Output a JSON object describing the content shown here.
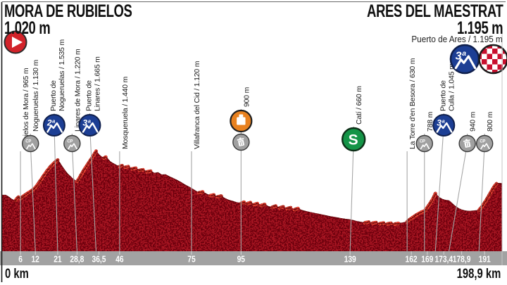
{
  "header": {
    "start": {
      "name": "MORA DE RUBIELOS",
      "altitude": "1.020 m"
    },
    "finish": {
      "name": "ARES DEL MAESTRAT",
      "altitude": "1.195 m",
      "summit": "Puerto de Ares / 1.195 m"
    }
  },
  "axis": {
    "start_label": "0 km",
    "end_label": "198,9 km",
    "ticks": [
      {
        "km": 6,
        "label": "6"
      },
      {
        "km": 12,
        "label": "12"
      },
      {
        "km": 21,
        "label": "21"
      },
      {
        "km": 28.8,
        "label": "28,8"
      },
      {
        "km": 36.5,
        "label": "36,5",
        "dx": 4
      },
      {
        "km": 46,
        "label": "46"
      },
      {
        "km": 75,
        "label": "75"
      },
      {
        "km": 95,
        "label": "95"
      },
      {
        "km": 139,
        "label": "139"
      },
      {
        "km": 162,
        "label": "162",
        "dx": 6
      },
      {
        "km": 169,
        "label": "169",
        "dx": 4
      },
      {
        "km": 173.4,
        "label": "173,4",
        "dx": 12
      },
      {
        "km": 178.9,
        "label": "178,9",
        "dx": 18
      },
      {
        "km": 191,
        "label": "191",
        "dx": 8
      }
    ]
  },
  "icon_labels": {
    "cat2": "2ª",
    "cat3": "3ª",
    "pass": "CP",
    "sprint": "S"
  },
  "colors": {
    "profile_red": "#a81421",
    "highlight_red": "#ee4434",
    "outline_red": "#7a0c15",
    "band_gray": "#a2a2a2",
    "climb_blue": "#1c3e94",
    "sprint_green": "#149447",
    "feed_orange": "#e8811f",
    "icon_gray": "#a0a0a0",
    "start_red": "#d2232a",
    "checker_red": "#c8102e"
  },
  "chart_data": {
    "type": "area",
    "x_unit": "km",
    "y_unit": "m",
    "x_range": [
      0,
      198.9
    ],
    "start_point": {
      "name": "Mora de Rubielos",
      "elevation_m": 1020
    },
    "finish_point": {
      "name": "Ares del Maestrat",
      "elevation_m": 1195,
      "summit": "Puerto de Ares",
      "category": "3ª"
    },
    "markers": [
      {
        "km": 6,
        "lines": [
          "Rubielos de Mora / 965 m"
        ],
        "icon": "none",
        "elevation_m": 965
      },
      {
        "km": 12,
        "lines": [
          "Nogueruelas / 1.130 m"
        ],
        "icon": "pass",
        "dx": -7,
        "elevation_m": 1130
      },
      {
        "km": 21,
        "lines": [
          "Puerto de",
          "Nogueruelas / 1.535 m"
        ],
        "icon": "cat2",
        "dx": -5,
        "elevation_m": 1535
      },
      {
        "km": 28.8,
        "lines": [
          "Linares de Mora / 1.220 m"
        ],
        "icon": "pass",
        "dx": -7,
        "elevation_m": 1220
      },
      {
        "km": 36.5,
        "lines": [
          "Puerto de",
          "Linares / 1.665 m"
        ],
        "icon": "cat3",
        "dx": -9,
        "elevation_m": 1665
      },
      {
        "km": 46,
        "lines": [
          "Mosqueruela / 1.440 m"
        ],
        "icon": "none",
        "elevation_m": 1440
      },
      {
        "km": 75,
        "lines": [
          "Villafranca del Cid / 1.120 m"
        ],
        "icon": "none",
        "elevation_m": 1120
      },
      {
        "km": 95,
        "lines": [
          "900 m"
        ],
        "icon": "feed_waste",
        "elevation_m": 900
      },
      {
        "km": 139,
        "lines": [
          "Catí / 660 m"
        ],
        "icon": "sprint",
        "dx": 5,
        "elevation_m": 660
      },
      {
        "km": 162,
        "lines": [
          "La Torre d'en Besora / 630 m"
        ],
        "icon": "none",
        "elevation_m": 630
      },
      {
        "km": 169,
        "lines": [
          "788 m"
        ],
        "icon": "pass",
        "elevation_m": 788
      },
      {
        "km": 173.4,
        "lines": [
          "Puerto de",
          "Culla / 1.045 m"
        ],
        "icon": "cat3",
        "dx": 12,
        "elevation_m": 1045
      },
      {
        "km": 178.9,
        "lines": [
          "940 m"
        ],
        "icon": "waste",
        "dx": 26,
        "elevation_m": 940
      },
      {
        "km": 191,
        "lines": [
          "800 m"
        ],
        "icon": "pass",
        "dx": 8,
        "elevation_m": 800
      }
    ],
    "profile_km_m": [
      [
        0,
        1020
      ],
      [
        0.8,
        1005
      ],
      [
        1.6,
        985
      ],
      [
        2.4,
        962
      ],
      [
        3.2,
        948
      ],
      [
        4,
        944
      ],
      [
        4.6,
        972
      ],
      [
        5.2,
        992
      ],
      [
        5.7,
        975
      ],
      [
        6,
        965
      ],
      [
        6.6,
        988
      ],
      [
        7.4,
        1012
      ],
      [
        8.2,
        1030
      ],
      [
        9,
        1052
      ],
      [
        10,
        1072
      ],
      [
        11,
        1098
      ],
      [
        12,
        1130
      ],
      [
        13,
        1178
      ],
      [
        14,
        1232
      ],
      [
        15,
        1286
      ],
      [
        16,
        1338
      ],
      [
        17,
        1388
      ],
      [
        18,
        1432
      ],
      [
        19,
        1470
      ],
      [
        20,
        1505
      ],
      [
        21,
        1535
      ],
      [
        21.8,
        1498
      ],
      [
        22.6,
        1452
      ],
      [
        23.4,
        1408
      ],
      [
        24.2,
        1368
      ],
      [
        25,
        1332
      ],
      [
        26,
        1298
      ],
      [
        27,
        1264
      ],
      [
        28,
        1236
      ],
      [
        28.8,
        1220
      ],
      [
        29.6,
        1262
      ],
      [
        30.4,
        1312
      ],
      [
        31.2,
        1360
      ],
      [
        32,
        1408
      ],
      [
        32.8,
        1452
      ],
      [
        33.6,
        1498
      ],
      [
        34.4,
        1542
      ],
      [
        35.2,
        1585
      ],
      [
        36,
        1632
      ],
      [
        36.5,
        1665
      ],
      [
        37.2,
        1635
      ],
      [
        38,
        1602
      ],
      [
        38.8,
        1578
      ],
      [
        39.6,
        1562
      ],
      [
        40.4,
        1578
      ],
      [
        41.2,
        1552
      ],
      [
        42,
        1518
      ],
      [
        43,
        1492
      ],
      [
        44,
        1472
      ],
      [
        45,
        1452
      ],
      [
        46,
        1440
      ],
      [
        47,
        1452
      ],
      [
        48.2,
        1428
      ],
      [
        49.5,
        1438
      ],
      [
        51,
        1405
      ],
      [
        52.5,
        1415
      ],
      [
        54,
        1382
      ],
      [
        55.5,
        1392
      ],
      [
        57,
        1362
      ],
      [
        58.5,
        1372
      ],
      [
        60,
        1342
      ],
      [
        61.5,
        1350
      ],
      [
        63,
        1318
      ],
      [
        64.5,
        1322
      ],
      [
        66,
        1292
      ],
      [
        67.5,
        1268
      ],
      [
        69,
        1242
      ],
      [
        70.5,
        1212
      ],
      [
        72,
        1180
      ],
      [
        73.5,
        1150
      ],
      [
        75,
        1120
      ],
      [
        76.5,
        1085
      ],
      [
        78,
        1055
      ],
      [
        79.5,
        1068
      ],
      [
        81,
        1038
      ],
      [
        82.5,
        1012
      ],
      [
        84,
        1025
      ],
      [
        85.5,
        995
      ],
      [
        87,
        1008
      ],
      [
        88.5,
        972
      ],
      [
        90,
        948
      ],
      [
        91.5,
        932
      ],
      [
        93,
        915
      ],
      [
        95,
        900
      ],
      [
        96.2,
        918
      ],
      [
        97.4,
        895
      ],
      [
        98.8,
        912
      ],
      [
        100.2,
        882
      ],
      [
        101.6,
        898
      ],
      [
        103,
        868
      ],
      [
        104.5,
        885
      ],
      [
        106,
        855
      ],
      [
        107.5,
        842
      ],
      [
        109,
        862
      ],
      [
        110.5,
        832
      ],
      [
        112,
        850
      ],
      [
        113.5,
        822
      ],
      [
        115,
        838
      ],
      [
        116.5,
        808
      ],
      [
        118,
        825
      ],
      [
        119.5,
        798
      ],
      [
        121,
        785
      ],
      [
        123,
        768
      ],
      [
        125,
        752
      ],
      [
        127,
        738
      ],
      [
        129,
        722
      ],
      [
        131,
        708
      ],
      [
        133,
        695
      ],
      [
        135,
        682
      ],
      [
        137,
        670
      ],
      [
        139,
        660
      ],
      [
        140.5,
        648
      ],
      [
        142,
        635
      ],
      [
        143.5,
        625
      ],
      [
        145,
        616
      ],
      [
        146.5,
        626
      ],
      [
        148,
        610
      ],
      [
        149.5,
        620
      ],
      [
        151,
        604
      ],
      [
        152.5,
        614
      ],
      [
        154,
        600
      ],
      [
        155.5,
        610
      ],
      [
        157,
        598
      ],
      [
        158.5,
        608
      ],
      [
        160,
        615
      ],
      [
        161,
        622
      ],
      [
        162,
        630
      ],
      [
        163,
        662
      ],
      [
        164.2,
        692
      ],
      [
        165.4,
        722
      ],
      [
        166.6,
        748
      ],
      [
        167.8,
        772
      ],
      [
        169,
        788
      ],
      [
        169.8,
        822
      ],
      [
        170.6,
        862
      ],
      [
        171.4,
        905
      ],
      [
        172.2,
        952
      ],
      [
        173,
        1005
      ],
      [
        173.4,
        1045
      ],
      [
        174,
        1022
      ],
      [
        174.8,
        992
      ],
      [
        175.6,
        972
      ],
      [
        176.4,
        958
      ],
      [
        177.2,
        950
      ],
      [
        178,
        945
      ],
      [
        178.9,
        940
      ],
      [
        179.8,
        912
      ],
      [
        180.8,
        878
      ],
      [
        181.8,
        848
      ],
      [
        182.8,
        825
      ],
      [
        183.8,
        808
      ],
      [
        185,
        795
      ],
      [
        186.2,
        788
      ],
      [
        187.4,
        786
      ],
      [
        188.6,
        790
      ],
      [
        189.8,
        795
      ],
      [
        191,
        800
      ],
      [
        191.8,
        832
      ],
      [
        192.6,
        872
      ],
      [
        193.4,
        915
      ],
      [
        194.2,
        962
      ],
      [
        195,
        1012
      ],
      [
        195.8,
        1062
      ],
      [
        196.6,
        1112
      ],
      [
        197.4,
        1158
      ],
      [
        198.1,
        1188
      ],
      [
        198.5,
        1195
      ],
      [
        198.9,
        1193
      ]
    ]
  }
}
